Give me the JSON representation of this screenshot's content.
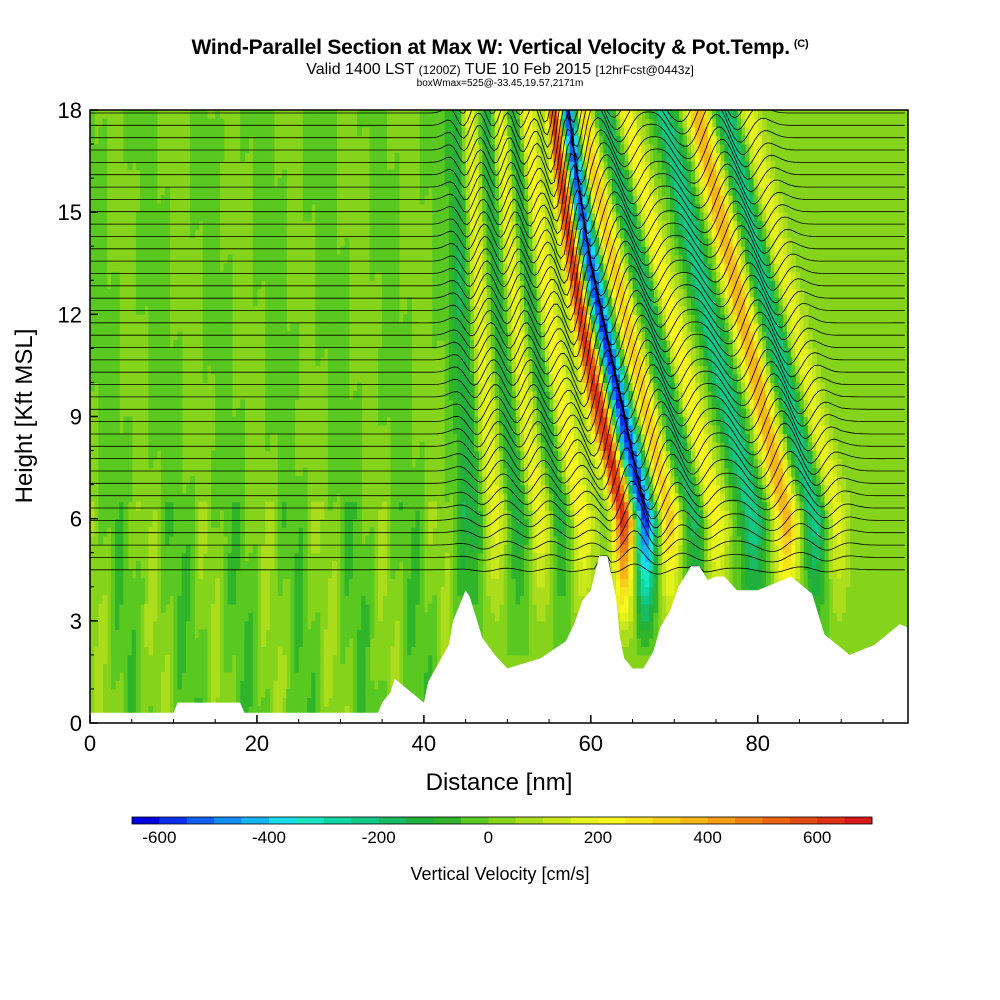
{
  "chart_data": {
    "type": "heatmap",
    "title": "Wind-Parallel Section at Max W: Vertical Velocity & Pot.Temp.",
    "title_mark": "(C)",
    "subtitle_main": "Valid 1400 LST",
    "subtitle_zulu": "(1200Z)",
    "subtitle_date": "TUE 10 Feb 2015",
    "subtitle_fcst": "[12hrFcst@0443z]",
    "subtitle2": "boxWmax=525@-33.45,19.57,2171m",
    "xlabel": "Distance [nm]",
    "ylabel": "Height [Kft MSL]",
    "xlim": [
      0,
      98
    ],
    "ylim": [
      0,
      18
    ],
    "x_ticks": [
      "0",
      "20",
      "40",
      "60",
      "80"
    ],
    "y_ticks": [
      "0",
      "3",
      "6",
      "9",
      "12",
      "15",
      "18"
    ],
    "colorbar": {
      "label": "Vertical Velocity [cm/s]",
      "range": [
        -650,
        700
      ],
      "step": 50,
      "tick_labels": [
        "-600",
        "-400",
        "-200",
        "0",
        "200",
        "400",
        "600"
      ],
      "colors": [
        "#0000e0",
        "#0a2ef0",
        "#0f5ef5",
        "#118df5",
        "#14b5f0",
        "#19dcea",
        "#16e6c4",
        "#10d6a4",
        "#12c886",
        "#18bc64",
        "#21b03e",
        "#30b42a",
        "#59c820",
        "#86d31c",
        "#acdd1c",
        "#c8e81c",
        "#e4f21e",
        "#f7f71e",
        "#f8e41c",
        "#f7cf18",
        "#f5b716",
        "#f39d15",
        "#ef8014",
        "#ea6412",
        "#e34a12",
        "#dd3014",
        "#d61818"
      ]
    },
    "wave_bands_w_cm_s": [
      {
        "x": 46,
        "kind": "downdraft",
        "w": -150
      },
      {
        "x": 48.5,
        "kind": "updraft",
        "w": 200
      },
      {
        "x": 51.5,
        "kind": "downdraft",
        "w": -150
      },
      {
        "x": 54,
        "kind": "updraft",
        "w": 220
      },
      {
        "x": 56.5,
        "kind": "downdraft",
        "w": -150
      },
      {
        "x": 59,
        "kind": "updraft",
        "w": 250
      },
      {
        "x": 64,
        "kind": "updraft",
        "w": 650
      },
      {
        "x": 66.5,
        "kind": "downdraft",
        "w": -600
      },
      {
        "x": 69.5,
        "kind": "updraft",
        "w": 350
      },
      {
        "x": 72.5,
        "kind": "downdraft",
        "w": -200
      },
      {
        "x": 75,
        "kind": "updraft",
        "w": 250
      },
      {
        "x": 79.5,
        "kind": "downdraft",
        "w": -250
      },
      {
        "x": 83.5,
        "kind": "updraft",
        "w": 400
      },
      {
        "x": 87,
        "kind": "downdraft",
        "w": -250
      },
      {
        "x": 89.5,
        "kind": "updraft",
        "w": 200
      }
    ],
    "terrain_kft": {
      "x": [
        0,
        10,
        10.5,
        18,
        18.5,
        34.5,
        35,
        36,
        36.5,
        40,
        40.5,
        43,
        43.5,
        45,
        45.5,
        47,
        48.5,
        50,
        54,
        57,
        58,
        59,
        60,
        61,
        62,
        63,
        63.5,
        64,
        65,
        66.3,
        67.5,
        68.3,
        69.5,
        70.5,
        72,
        73,
        74,
        75,
        76,
        77.5,
        80,
        84,
        86.5,
        88,
        91,
        94,
        97,
        98
      ],
      "y": [
        0.3,
        0.3,
        0.6,
        0.6,
        0.3,
        0.3,
        0.6,
        0.9,
        1.3,
        0.6,
        1.2,
        2.3,
        3.0,
        3.9,
        3.7,
        2.5,
        2.0,
        1.6,
        1.9,
        2.4,
        2.9,
        3.6,
        3.9,
        4.9,
        4.9,
        3.7,
        2.5,
        1.9,
        1.6,
        1.6,
        2.1,
        2.8,
        3.3,
        4.0,
        4.6,
        4.6,
        4.2,
        4.3,
        4.3,
        3.9,
        3.9,
        4.3,
        3.8,
        2.6,
        2.0,
        2.3,
        2.9,
        2.8
      ]
    },
    "theta_contours": 40,
    "grid": false,
    "legend": "colorbar-bottom"
  }
}
